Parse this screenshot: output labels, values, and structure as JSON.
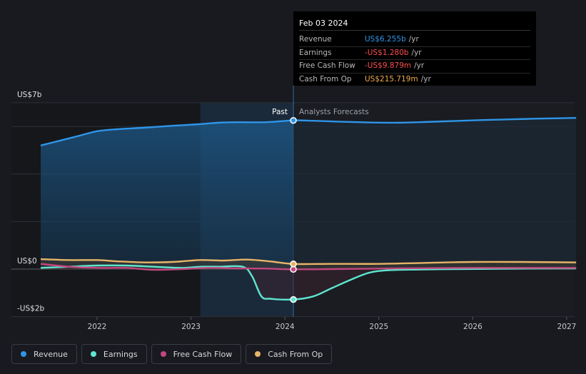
{
  "tooltip": {
    "date": "Feb 03 2024",
    "rows": [
      {
        "label": "Revenue",
        "value": "US$6.255b",
        "unit": "/yr",
        "color": "#2f95e8"
      },
      {
        "label": "Earnings",
        "value": "-US$1.280b",
        "unit": "/yr",
        "color": "#ff4d4d"
      },
      {
        "label": "Free Cash Flow",
        "value": "-US$9.879m",
        "unit": "/yr",
        "color": "#ff4d4d"
      },
      {
        "label": "Cash From Op",
        "value": "US$215.719m",
        "unit": "/yr",
        "color": "#f0a94b"
      }
    ]
  },
  "labels": {
    "past": "Past",
    "forecast": "Analysts Forecasts"
  },
  "legend": [
    {
      "label": "Revenue",
      "color": "#2f95e8"
    },
    {
      "label": "Earnings",
      "color": "#5ee6cf"
    },
    {
      "label": "Free Cash Flow",
      "color": "#c2467f"
    },
    {
      "label": "Cash From Op",
      "color": "#e8b468"
    }
  ],
  "chart_data": {
    "type": "line",
    "y_tick_labels": [
      "US$7b",
      "US$0",
      "-US$2b"
    ],
    "x_tick_labels": [
      "2022",
      "2023",
      "2024",
      "2025",
      "2026",
      "2027"
    ],
    "ylim": [
      -2,
      7
    ],
    "xlim": [
      2021.25,
      2027.1
    ],
    "past_end": 2024.09,
    "highlight_start": 2023.1,
    "grid": true,
    "series": [
      {
        "name": "Revenue",
        "color": "#2f95e8",
        "x": [
          2021.4,
          2021.6,
          2021.8,
          2022.0,
          2022.2,
          2022.5,
          2022.8,
          2023.1,
          2023.3,
          2023.5,
          2023.8,
          2024.09,
          2024.3,
          2024.6,
          2024.9,
          2025.2,
          2025.5,
          2025.8,
          2026.1,
          2026.4,
          2026.7,
          2027.1
        ],
        "y": [
          5.2,
          5.4,
          5.6,
          5.8,
          5.88,
          5.95,
          6.03,
          6.1,
          6.16,
          6.18,
          6.18,
          6.255,
          6.24,
          6.2,
          6.17,
          6.16,
          6.19,
          6.23,
          6.27,
          6.3,
          6.33,
          6.36
        ]
      },
      {
        "name": "Earnings",
        "color": "#5ee6cf",
        "x": [
          2021.4,
          2021.7,
          2022.0,
          2022.3,
          2022.6,
          2022.9,
          2023.1,
          2023.3,
          2023.55,
          2023.65,
          2023.75,
          2023.85,
          2024.09,
          2024.3,
          2024.5,
          2024.7,
          2024.9,
          2025.1,
          2025.4,
          2025.8,
          2026.2,
          2026.6,
          2027.1
        ],
        "y": [
          0.05,
          0.1,
          0.15,
          0.15,
          0.1,
          0.05,
          0.1,
          0.1,
          0.1,
          -0.3,
          -1.15,
          -1.25,
          -1.28,
          -1.15,
          -0.8,
          -0.45,
          -0.15,
          -0.05,
          -0.02,
          0.0,
          0.01,
          0.02,
          0.03
        ]
      },
      {
        "name": "Free Cash Flow",
        "color": "#c2467f",
        "x": [
          2021.4,
          2021.7,
          2022.0,
          2022.3,
          2022.6,
          2022.9,
          2023.2,
          2023.5,
          2023.8,
          2024.09,
          2024.5,
          2025.0,
          2025.5,
          2026.0,
          2026.5,
          2027.1
        ],
        "y": [
          0.22,
          0.1,
          0.05,
          0.05,
          -0.03,
          0.0,
          0.05,
          0.03,
          0.02,
          -0.01,
          0.0,
          0.02,
          0.04,
          0.05,
          0.05,
          0.05
        ]
      },
      {
        "name": "Cash From Op",
        "color": "#e8b468",
        "x": [
          2021.4,
          2021.7,
          2022.0,
          2022.2,
          2022.5,
          2022.8,
          2023.1,
          2023.35,
          2023.6,
          2023.85,
          2024.09,
          2024.5,
          2025.0,
          2025.5,
          2026.0,
          2026.5,
          2027.1
        ],
        "y": [
          0.42,
          0.38,
          0.38,
          0.33,
          0.28,
          0.3,
          0.38,
          0.36,
          0.4,
          0.32,
          0.216,
          0.22,
          0.22,
          0.26,
          0.3,
          0.3,
          0.28
        ]
      }
    ],
    "markers": [
      {
        "series": "Revenue",
        "x": 2024.09,
        "y": 6.255
      },
      {
        "series": "Earnings",
        "x": 2024.09,
        "y": -1.28
      },
      {
        "series": "Free Cash Flow",
        "x": 2024.09,
        "y": -0.01
      },
      {
        "series": "Cash From Op",
        "x": 2024.09,
        "y": 0.216
      }
    ]
  }
}
